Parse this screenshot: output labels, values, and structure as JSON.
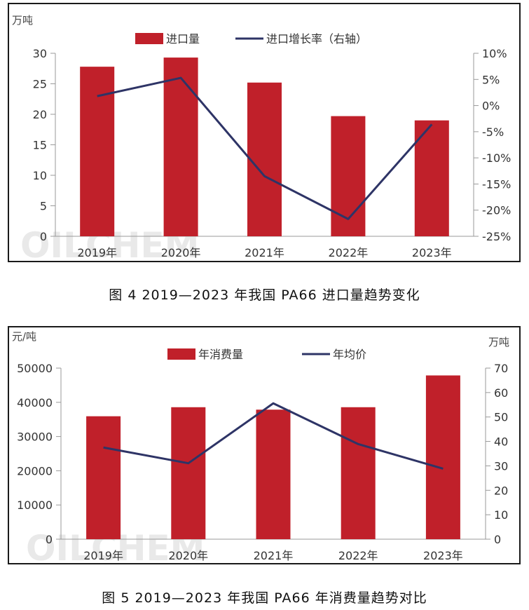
{
  "chart_data": [
    {
      "type": "bar",
      "categories": [
        "2019年",
        "2020年",
        "2021年",
        "2022年",
        "2023年"
      ],
      "series": [
        {
          "name": "进口量",
          "type": "bar",
          "axis": "left",
          "values": [
            27.8,
            29.3,
            25.2,
            19.7,
            19.0
          ]
        },
        {
          "name": "进口增长率（右轴）",
          "type": "line",
          "axis": "right",
          "values": [
            1.8,
            5.3,
            -13.5,
            -21.7,
            -3.6
          ]
        }
      ],
      "left_axis": {
        "unit": "万吨",
        "ylim": [
          0,
          30
        ],
        "ticks": [
          "0",
          "5",
          "10",
          "15",
          "20",
          "25",
          "30"
        ]
      },
      "right_axis": {
        "ylim": [
          -25,
          10
        ],
        "ticks": [
          "-25%",
          "-20%",
          "-15%",
          "-10%",
          "-5%",
          "0%",
          "5%",
          "10%"
        ]
      },
      "legend": "top-center",
      "grid": false,
      "colors": {
        "bar": "#c0202a",
        "line": "#2e3466"
      },
      "watermark": "OILCHEM",
      "caption": "图 4 2019—2023 年我国 PA66 进口量趋势变化"
    },
    {
      "type": "bar",
      "categories": [
        "2019年",
        "2020年",
        "2021年",
        "2022年",
        "2023年"
      ],
      "series": [
        {
          "name": "年消费量",
          "type": "bar",
          "axis": "right",
          "values": [
            50.3,
            54.0,
            53.0,
            54.0,
            67.0
          ]
        },
        {
          "name": "年均价",
          "type": "line",
          "axis": "left",
          "values": [
            26800,
            22200,
            39700,
            27800,
            20600
          ]
        }
      ],
      "left_axis": {
        "unit": "元/吨",
        "ylim": [
          0,
          50000
        ],
        "ticks": [
          "0",
          "10000",
          "20000",
          "30000",
          "40000",
          "50000"
        ]
      },
      "right_axis": {
        "unit": "万吨",
        "ylim": [
          0,
          70
        ],
        "ticks": [
          "0",
          "10",
          "20",
          "30",
          "40",
          "50",
          "60",
          "70"
        ]
      },
      "legend": "top-center",
      "grid": false,
      "colors": {
        "bar": "#c0202a",
        "line": "#2e3466"
      },
      "watermark": "OILCHEM",
      "caption": "图 5 2019—2023 年我国 PA66 年消费量趋势对比"
    }
  ]
}
